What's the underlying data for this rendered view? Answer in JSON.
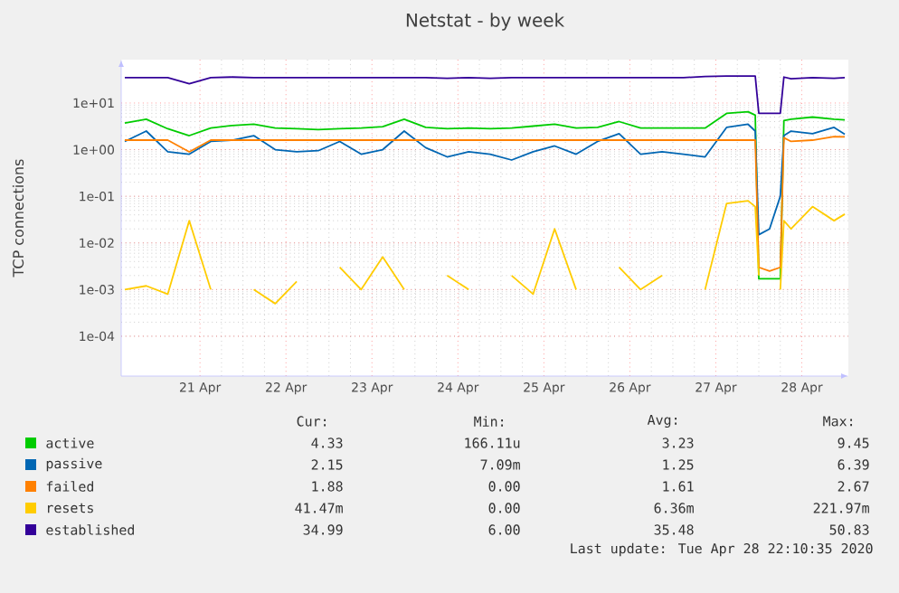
{
  "chart_data": {
    "type": "line",
    "title": "Netstat - by week",
    "ylabel": "TCP connections",
    "log": "y",
    "grid": true,
    "legend": "bottom",
    "xlim": [
      "2020-04-20T02:00",
      "2020-04-28T13:00"
    ],
    "xticks": [
      {
        "value": "2020-04-21",
        "label": "21 Apr"
      },
      {
        "value": "2020-04-22",
        "label": "22 Apr"
      },
      {
        "value": "2020-04-23",
        "label": "23 Apr"
      },
      {
        "value": "2020-04-24",
        "label": "24 Apr"
      },
      {
        "value": "2020-04-25",
        "label": "25 Apr"
      },
      {
        "value": "2020-04-26",
        "label": "26 Apr"
      },
      {
        "value": "2020-04-27",
        "label": "27 Apr"
      },
      {
        "value": "2020-04-28",
        "label": "28 Apr"
      }
    ],
    "ylim": [
      1.4e-05,
      85
    ],
    "yticks": [
      {
        "value": 0.0001,
        "label": "1e-04"
      },
      {
        "value": 0.001,
        "label": "1e-03"
      },
      {
        "value": 0.01,
        "label": "1e-02"
      },
      {
        "value": 0.1,
        "label": "1e-01"
      },
      {
        "value": 1,
        "label": "1e+00"
      },
      {
        "value": 10,
        "label": "1e+01"
      }
    ],
    "x": [
      "2020-04-20T03:00",
      "2020-04-20T09:00",
      "2020-04-20T15:00",
      "2020-04-20T21:00",
      "2020-04-21T03:00",
      "2020-04-21T09:00",
      "2020-04-21T15:00",
      "2020-04-21T21:00",
      "2020-04-22T03:00",
      "2020-04-22T09:00",
      "2020-04-22T15:00",
      "2020-04-22T21:00",
      "2020-04-23T03:00",
      "2020-04-23T09:00",
      "2020-04-23T15:00",
      "2020-04-23T21:00",
      "2020-04-24T03:00",
      "2020-04-24T09:00",
      "2020-04-24T15:00",
      "2020-04-24T21:00",
      "2020-04-25T03:00",
      "2020-04-25T09:00",
      "2020-04-25T15:00",
      "2020-04-25T21:00",
      "2020-04-26T03:00",
      "2020-04-26T09:00",
      "2020-04-26T15:00",
      "2020-04-26T21:00",
      "2020-04-27T03:00",
      "2020-04-27T09:00",
      "2020-04-27T11:00",
      "2020-04-27T12:00",
      "2020-04-27T15:00",
      "2020-04-27T18:00",
      "2020-04-27T19:00",
      "2020-04-27T21:00",
      "2020-04-28T03:00",
      "2020-04-28T09:00",
      "2020-04-28T12:00"
    ],
    "series": [
      {
        "name": "active",
        "color": "#00cc00",
        "values": [
          3.7,
          4.5,
          2.8,
          2.0,
          2.9,
          3.3,
          3.5,
          2.9,
          2.8,
          2.7,
          2.8,
          2.9,
          3.1,
          4.5,
          3.0,
          2.8,
          2.9,
          2.8,
          2.9,
          3.2,
          3.5,
          2.9,
          3.0,
          4.0,
          2.9,
          2.9,
          2.9,
          2.9,
          6,
          6.5,
          5.5,
          0.0017,
          0.0017,
          0.0017,
          4.2,
          4.5,
          5,
          4.5,
          4.33
        ]
      },
      {
        "name": "passive",
        "color": "#0066b3",
        "values": [
          1.5,
          2.5,
          0.9,
          0.8,
          1.5,
          1.6,
          2,
          1.0,
          0.9,
          0.95,
          1.5,
          0.8,
          1.0,
          2.5,
          1.1,
          0.7,
          0.9,
          0.8,
          0.6,
          0.9,
          1.2,
          0.8,
          1.5,
          2.2,
          0.8,
          0.9,
          0.8,
          0.7,
          3,
          3.5,
          2.5,
          0.015,
          0.02,
          0.1,
          2,
          2.5,
          2.2,
          3,
          2.15
        ]
      },
      {
        "name": "failed",
        "color": "#ff8000",
        "values": [
          1.6,
          1.6,
          1.6,
          0.9,
          1.6,
          1.6,
          1.6,
          1.6,
          1.6,
          1.6,
          1.6,
          1.6,
          1.6,
          1.6,
          1.6,
          1.6,
          1.6,
          1.6,
          1.6,
          1.6,
          1.6,
          1.6,
          1.6,
          1.6,
          1.6,
          1.6,
          1.6,
          1.6,
          1.6,
          1.6,
          1.6,
          0.003,
          0.0025,
          0.003,
          1.8,
          1.5,
          1.6,
          1.9,
          1.88
        ]
      },
      {
        "name": "resets",
        "color": "#ffcc00",
        "values": [
          0.001,
          0.0012,
          0.0008,
          0.03,
          0.001,
          null,
          0.001,
          0.0005,
          0.0015,
          null,
          0.003,
          0.001,
          0.005,
          0.001,
          null,
          0.002,
          0.001,
          null,
          0.002,
          0.0008,
          0.02,
          0.001,
          null,
          0.003,
          0.001,
          0.002,
          null,
          0.001,
          0.07,
          0.08,
          0.06,
          0.002,
          null,
          0.001,
          0.03,
          0.02,
          0.06,
          0.03,
          0.04147
        ]
      },
      {
        "name": "established",
        "color": "#330099",
        "values": [
          35,
          35,
          35,
          26,
          35,
          36,
          35,
          35,
          35,
          35,
          35,
          35,
          35,
          35,
          35,
          34,
          35,
          34,
          35,
          35,
          35,
          35,
          35,
          35,
          35,
          35,
          35,
          37,
          38,
          38,
          38,
          6,
          6,
          6,
          36,
          33,
          35,
          34,
          34.99
        ]
      }
    ],
    "annotations": [
      "Cur:",
      "Min:",
      "Avg:",
      "Max:",
      "4.33",
      "166.11u",
      "3.23",
      "9.45",
      "2.15",
      "7.09m",
      "1.25",
      "6.39",
      "1.88",
      "0.00",
      "1.61",
      "2.67",
      "41.47m",
      "0.00",
      "6.36m",
      "221.97m",
      "34.99",
      "6.00",
      "35.48",
      "50.83",
      "Last update: Tue Apr 28 22:10:35 2020"
    ]
  }
}
